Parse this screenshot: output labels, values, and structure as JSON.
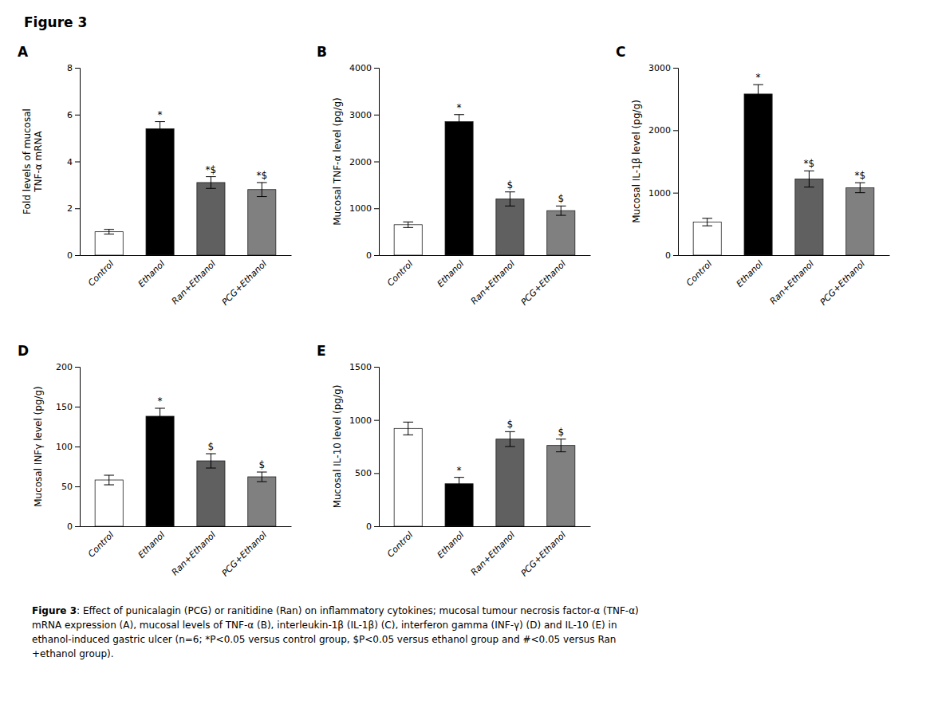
{
  "title": "Figure 3",
  "caption": [
    "Figure 3",
    ": Effect of punicalagin (PCG) or ranitidine (Ran) on inflammatory cytokines; mucosal tumour necrosis factor-α (TNF-α)\nmRNA expression (A), mucosal levels of TNF-α (B), interleukin-1β (IL-1β) (C), interferon gamma (INF-γ) (D) and IL-10 (E) in\nethanol-induced gastric ulcer (n=6; *P<0.05 versus control group, $P<0.05 versus ethanol group and #<0.05 versus Ran\n+ethanol group)."
  ],
  "chart_data": [
    {
      "type": "bar",
      "title": "A",
      "ylabel": "Fold levels of mucosal\nTNF-α mRNA",
      "categories": [
        "Control",
        "Ethanol",
        "Ran+Ethanol",
        "PCG+Ethanol"
      ],
      "values": [
        1.0,
        5.4,
        3.1,
        2.8
      ],
      "errors": [
        0.1,
        0.3,
        0.25,
        0.3
      ],
      "annotations": [
        null,
        "*",
        "*$",
        "*$"
      ],
      "colors": [
        "white",
        "black",
        "#606060",
        "#808080"
      ],
      "ylim": [
        0,
        8
      ],
      "yticks": [
        0,
        2,
        4,
        6,
        8
      ],
      "grid": false
    },
    {
      "type": "bar",
      "title": "B",
      "ylabel": "Mucosal TNF-α level (pg/g)",
      "categories": [
        "Control",
        "Ethanol",
        "Ran+Ethanol",
        "PCG+Ethanol"
      ],
      "values": [
        650,
        2850,
        1200,
        950
      ],
      "errors": [
        60,
        150,
        150,
        100
      ],
      "annotations": [
        null,
        "*",
        "$",
        "$"
      ],
      "colors": [
        "white",
        "black",
        "#606060",
        "#808080"
      ],
      "ylim": [
        0,
        4000
      ],
      "yticks": [
        0,
        1000,
        2000,
        3000,
        4000
      ],
      "grid": false
    },
    {
      "type": "bar",
      "title": "C",
      "ylabel": "Mucosal IL-1β level (pg/g)",
      "categories": [
        "Control",
        "Ethanol",
        "Ran+Ethanol",
        "PCG+Ethanol"
      ],
      "values": [
        530,
        2580,
        1220,
        1080
      ],
      "errors": [
        60,
        150,
        130,
        80
      ],
      "annotations": [
        null,
        "*",
        "*$",
        "*$"
      ],
      "colors": [
        "white",
        "black",
        "#606060",
        "#808080"
      ],
      "ylim": [
        0,
        3000
      ],
      "yticks": [
        0,
        1000,
        2000,
        3000
      ],
      "grid": false
    },
    {
      "type": "bar",
      "title": "D",
      "ylabel": "Mucosal INFγ level (pg/g)",
      "categories": [
        "Control",
        "Ethanol",
        "Ran+Ethanol",
        "PCG+Ethanol"
      ],
      "values": [
        58,
        138,
        82,
        62
      ],
      "errors": [
        6,
        10,
        9,
        6
      ],
      "annotations": [
        null,
        "*",
        "$",
        "$"
      ],
      "colors": [
        "white",
        "black",
        "#606060",
        "#808080"
      ],
      "ylim": [
        0,
        200
      ],
      "yticks": [
        0,
        50,
        100,
        150,
        200
      ],
      "grid": false
    },
    {
      "type": "bar",
      "title": "E",
      "ylabel": "Mucosal IL-10 level (pg/g)",
      "categories": [
        "Control",
        "Ethanol",
        "Ran+Ethanol",
        "PCG+Ethanol"
      ],
      "values": [
        920,
        400,
        820,
        760
      ],
      "errors": [
        60,
        60,
        70,
        60
      ],
      "annotations": [
        null,
        "*",
        "$",
        "$"
      ],
      "colors": [
        "white",
        "black",
        "#606060",
        "#808080"
      ],
      "ylim": [
        0,
        1500
      ],
      "yticks": [
        0,
        500,
        1000,
        1500
      ],
      "grid": false
    }
  ]
}
